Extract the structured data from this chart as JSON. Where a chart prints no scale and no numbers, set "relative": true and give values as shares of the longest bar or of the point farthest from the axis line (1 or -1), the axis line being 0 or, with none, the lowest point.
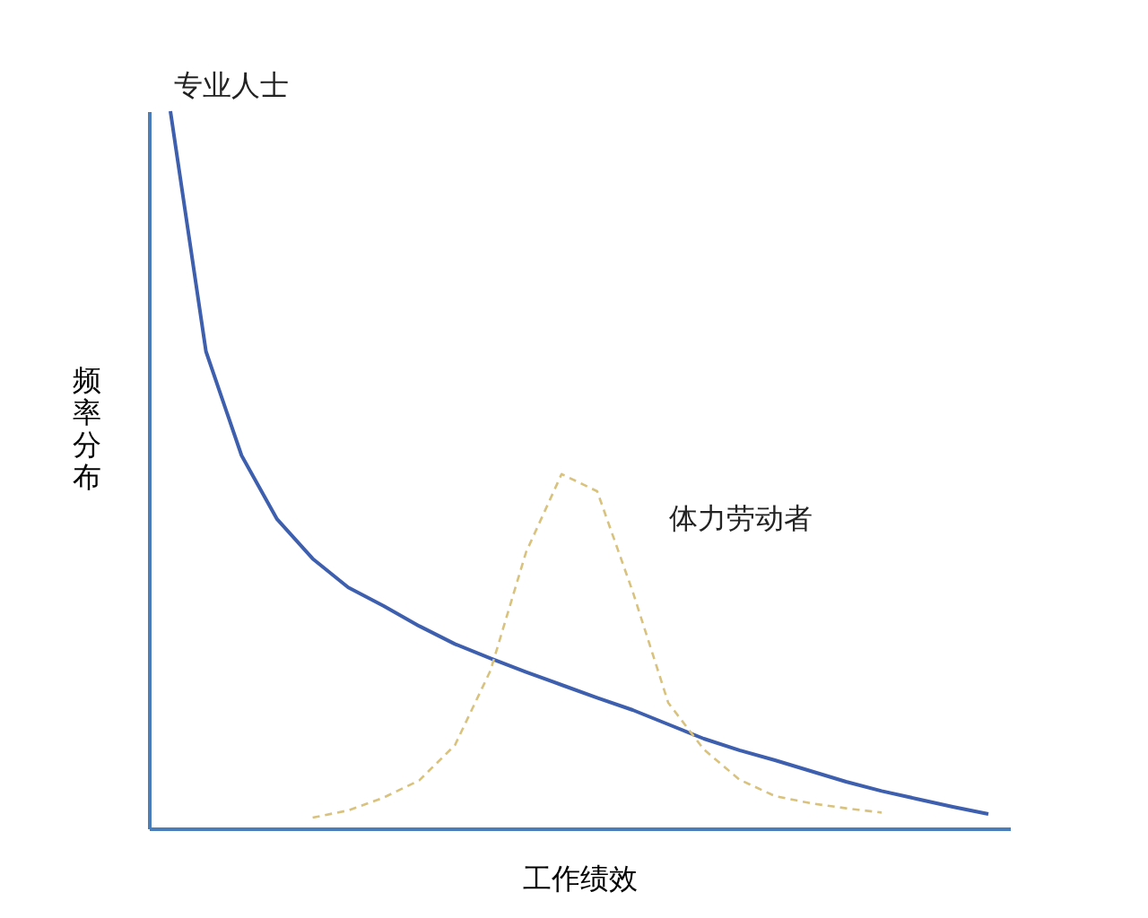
{
  "chart_data": {
    "type": "line",
    "relative": true,
    "xlabel": "工作绩效",
    "ylabel": "频率分布",
    "tick_labels": false,
    "grid": false,
    "legend": false,
    "marker": "none",
    "categories": [
      null,
      null,
      null,
      null,
      null,
      null,
      null,
      null,
      null,
      null,
      null,
      null,
      null,
      null,
      null,
      null,
      null,
      null,
      null,
      null,
      null,
      null,
      null,
      null
    ],
    "series": [
      {
        "name": "专业人士",
        "color": "#3d5fae",
        "line_style": "solid",
        "values": [
          1.0,
          0.665,
          0.52,
          0.431,
          0.376,
          0.336,
          0.31,
          0.282,
          0.257,
          0.237,
          0.218,
          0.2,
          0.182,
          0.165,
          0.145,
          0.125,
          0.109,
          0.095,
          0.08,
          0.065,
          0.052,
          0.041,
          0.03,
          0.02
        ]
      },
      {
        "name": "体力劳动者",
        "color": "#d8c27e",
        "line_style": "dashed",
        "values": [
          null,
          null,
          null,
          null,
          0.015,
          0.025,
          0.043,
          0.067,
          0.116,
          0.22,
          0.385,
          0.494,
          0.47,
          0.33,
          0.175,
          0.11,
          0.068,
          0.045,
          0.035,
          0.028,
          0.022,
          null,
          null,
          null
        ]
      }
    ]
  }
}
